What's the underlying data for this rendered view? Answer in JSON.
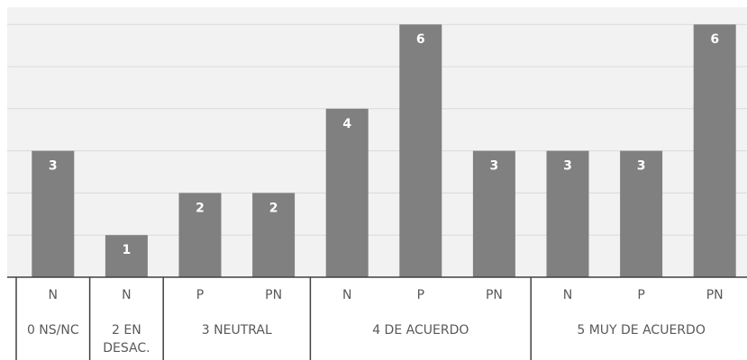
{
  "chart_data": {
    "type": "bar",
    "title": "",
    "xlabel": "",
    "ylabel": "",
    "ylim": [
      0,
      6
    ],
    "grid": true,
    "bar_color": "#808080",
    "grid_color": "#d9d9d9",
    "background": "#f2f2f2",
    "groups": [
      {
        "label_lines": [
          "0 NS/NC"
        ],
        "categories": [
          "N"
        ],
        "values": [
          3
        ]
      },
      {
        "label_lines": [
          "2 EN",
          "DESAC."
        ],
        "categories": [
          "N"
        ],
        "values": [
          1
        ]
      },
      {
        "label_lines": [
          "3 NEUTRAL"
        ],
        "categories": [
          "P",
          "PN"
        ],
        "values": [
          2,
          2
        ]
      },
      {
        "label_lines": [
          "4 DE ACUERDO"
        ],
        "categories": [
          "N",
          "P",
          "PN"
        ],
        "values": [
          4,
          6,
          3
        ]
      },
      {
        "label_lines": [
          "5 MUY DE ACUERDO"
        ],
        "categories": [
          "N",
          "P",
          "PN"
        ],
        "values": [
          3,
          3,
          6
        ]
      }
    ]
  }
}
